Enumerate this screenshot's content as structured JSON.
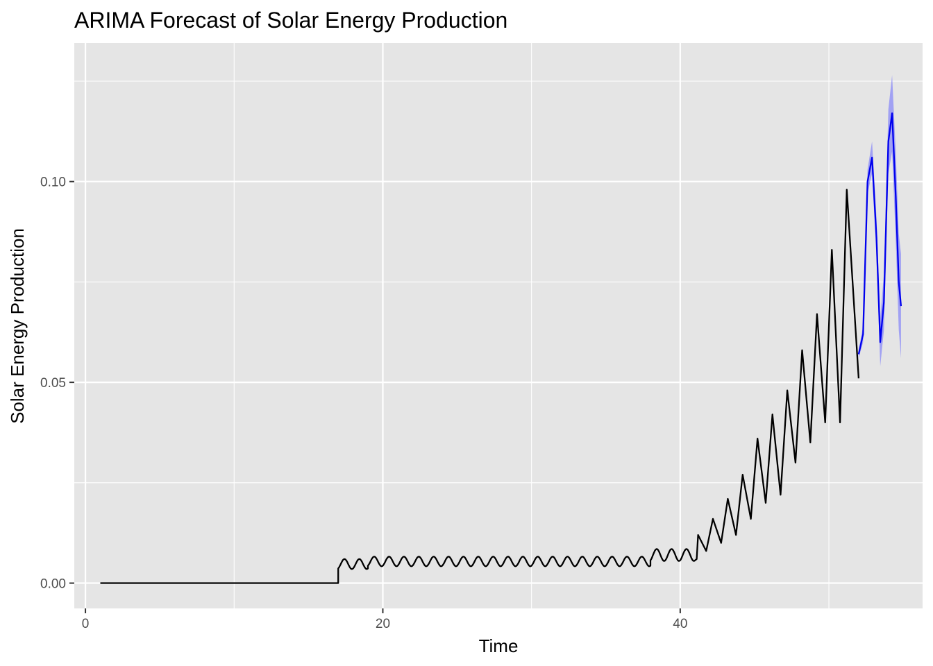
{
  "chart_data": {
    "type": "line",
    "title": "ARIMA Forecast of Solar Energy Production",
    "xlabel": "Time",
    "ylabel": "Solar Energy Production",
    "xlim": [
      -0.75,
      56.3
    ],
    "ylim": [
      -0.0063,
      0.1345
    ],
    "x_ticks": [
      0,
      20,
      40
    ],
    "x_tick_labels": [
      "0",
      "20",
      "40"
    ],
    "y_ticks": [
      0.0,
      0.05,
      0.1
    ],
    "y_tick_labels": [
      "0.00",
      "0.05",
      "0.10"
    ],
    "grid": true,
    "legend": "none",
    "colors": {
      "panel": "#e5e5e5",
      "grid": "#ffffff",
      "observed": "#000000",
      "forecast": "#0000ee",
      "interval": "#6a6aff"
    },
    "series": [
      {
        "role": "observed",
        "segments": [
          {
            "x0": 1.0,
            "x1": 17.0,
            "value": 0.0
          },
          {
            "x0": 17.0,
            "x1": 19.0,
            "base": 0.0035,
            "amp": 0.0025,
            "period": 1.0,
            "phase": 0.5
          },
          {
            "x0": 19.0,
            "x1": 38.0,
            "base": 0.0042,
            "amp": 0.0024,
            "period": 1.0,
            "phase": 0.5
          },
          {
            "x0": 38.0,
            "x1": 41.0,
            "base": 0.0055,
            "amp": 0.003,
            "period": 1.0,
            "phase": 0.5
          }
        ],
        "peaks": [
          {
            "x": 41.2,
            "min": 0.006,
            "max": 0.012
          },
          {
            "x": 42.2,
            "min": 0.008,
            "max": 0.016
          },
          {
            "x": 43.2,
            "min": 0.01,
            "max": 0.021
          },
          {
            "x": 44.2,
            "min": 0.012,
            "max": 0.027
          },
          {
            "x": 45.2,
            "min": 0.016,
            "max": 0.036
          },
          {
            "x": 46.2,
            "min": 0.02,
            "max": 0.042
          },
          {
            "x": 47.2,
            "min": 0.022,
            "max": 0.048
          },
          {
            "x": 48.2,
            "min": 0.03,
            "max": 0.058
          },
          {
            "x": 49.2,
            "min": 0.035,
            "max": 0.067
          },
          {
            "x": 50.2,
            "min": 0.04,
            "max": 0.083
          },
          {
            "x": 51.2,
            "min": 0.04,
            "max": 0.098
          }
        ],
        "end": {
          "x": 52.0,
          "value": 0.051
        }
      },
      {
        "role": "forecast",
        "points": [
          [
            52.0,
            0.057
          ],
          [
            52.3,
            0.062
          ],
          [
            52.6,
            0.1
          ],
          [
            52.9,
            0.106
          ],
          [
            53.2,
            0.086
          ],
          [
            53.45,
            0.06
          ],
          [
            53.7,
            0.07
          ],
          [
            54.0,
            0.11
          ],
          [
            54.25,
            0.117
          ],
          [
            54.5,
            0.096
          ],
          [
            54.7,
            0.075
          ],
          [
            54.85,
            0.069
          ]
        ],
        "interval_halfwidth": [
          0.001,
          0.002,
          0.003,
          0.004,
          0.005,
          0.006,
          0.007,
          0.008,
          0.0095,
          0.011,
          0.012,
          0.013
        ]
      }
    ]
  }
}
